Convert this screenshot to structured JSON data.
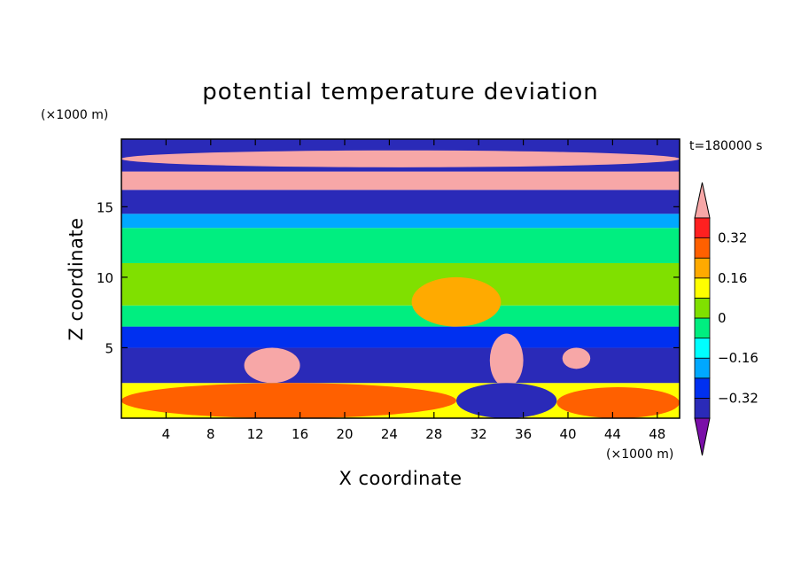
{
  "chart_data": {
    "type": "heatmap",
    "title": "potential temperature deviation",
    "xlabel": "X coordinate",
    "ylabel": "Z coordinate",
    "x_unit": "(×1000 m)",
    "y_unit": "(×1000 m)",
    "time_label": "t=180000 s",
    "xlim": [
      0,
      50
    ],
    "ylim": [
      0,
      19.8
    ],
    "x_ticks": [
      4,
      8,
      12,
      16,
      20,
      24,
      28,
      32,
      36,
      40,
      44,
      48
    ],
    "y_ticks": [
      5,
      10,
      15
    ],
    "colorbar": {
      "labels": [
        "0.32",
        "0.16",
        "0",
        "−0.16",
        "−0.32"
      ],
      "label_values": [
        0.32,
        0.16,
        0,
        -0.16,
        -0.32
      ],
      "levels": [
        -0.4,
        -0.32,
        -0.24,
        -0.16,
        -0.08,
        0,
        0.08,
        0.16,
        0.24,
        0.32,
        0.4
      ],
      "colors": [
        "#7a0fa8",
        "#2a2ab8",
        "#0030f0",
        "#00a8ff",
        "#00ffff",
        "#00ee80",
        "#80e000",
        "#ffff00",
        "#ffaa00",
        "#ff6000",
        "#ff2020",
        "#f7a7a7"
      ],
      "extend": "both"
    },
    "layers_description_free": true,
    "field_rows": [
      {
        "z_from": 0,
        "z_to": 2.5,
        "value": 0.1
      },
      {
        "z_from": 2.5,
        "z_to": 5,
        "value": -0.36
      },
      {
        "z_from": 5,
        "z_to": 6.5,
        "value": -0.28
      },
      {
        "z_from": 6.5,
        "z_to": 8,
        "value": -0.06
      },
      {
        "z_from": 8,
        "z_to": 11,
        "value": 0.03
      },
      {
        "z_from": 11,
        "z_to": 13.5,
        "value": -0.06
      },
      {
        "z_from": 13.5,
        "z_to": 14.5,
        "value": -0.22
      },
      {
        "z_from": 14.5,
        "z_to": 16.2,
        "value": -0.36
      },
      {
        "z_from": 16.2,
        "z_to": 17.5,
        "value": 0.45
      },
      {
        "z_from": 17.5,
        "z_to": 19.8,
        "value": -0.36
      }
    ],
    "field_patches": [
      {
        "x": [
          26,
          34
        ],
        "z": [
          6.5,
          10
        ],
        "value": 0.18
      },
      {
        "x": [
          0,
          50
        ],
        "z": [
          17.8,
          19
        ],
        "value": 0.45
      },
      {
        "x": [
          33,
          36
        ],
        "z": [
          2.2,
          6
        ],
        "value": 0.45
      },
      {
        "x": [
          11,
          16
        ],
        "z": [
          2.5,
          5
        ],
        "value": 0.45
      },
      {
        "x": [
          39.5,
          42
        ],
        "z": [
          3.5,
          5
        ],
        "value": 0.45
      },
      {
        "x": [
          0,
          30
        ],
        "z": [
          0,
          2.5
        ],
        "value": 0.25
      },
      {
        "x": [
          39,
          50
        ],
        "z": [
          0,
          2.2
        ],
        "value": 0.3
      },
      {
        "x": [
          30,
          39
        ],
        "z": [
          0,
          2.5
        ],
        "value": -0.36
      }
    ]
  }
}
